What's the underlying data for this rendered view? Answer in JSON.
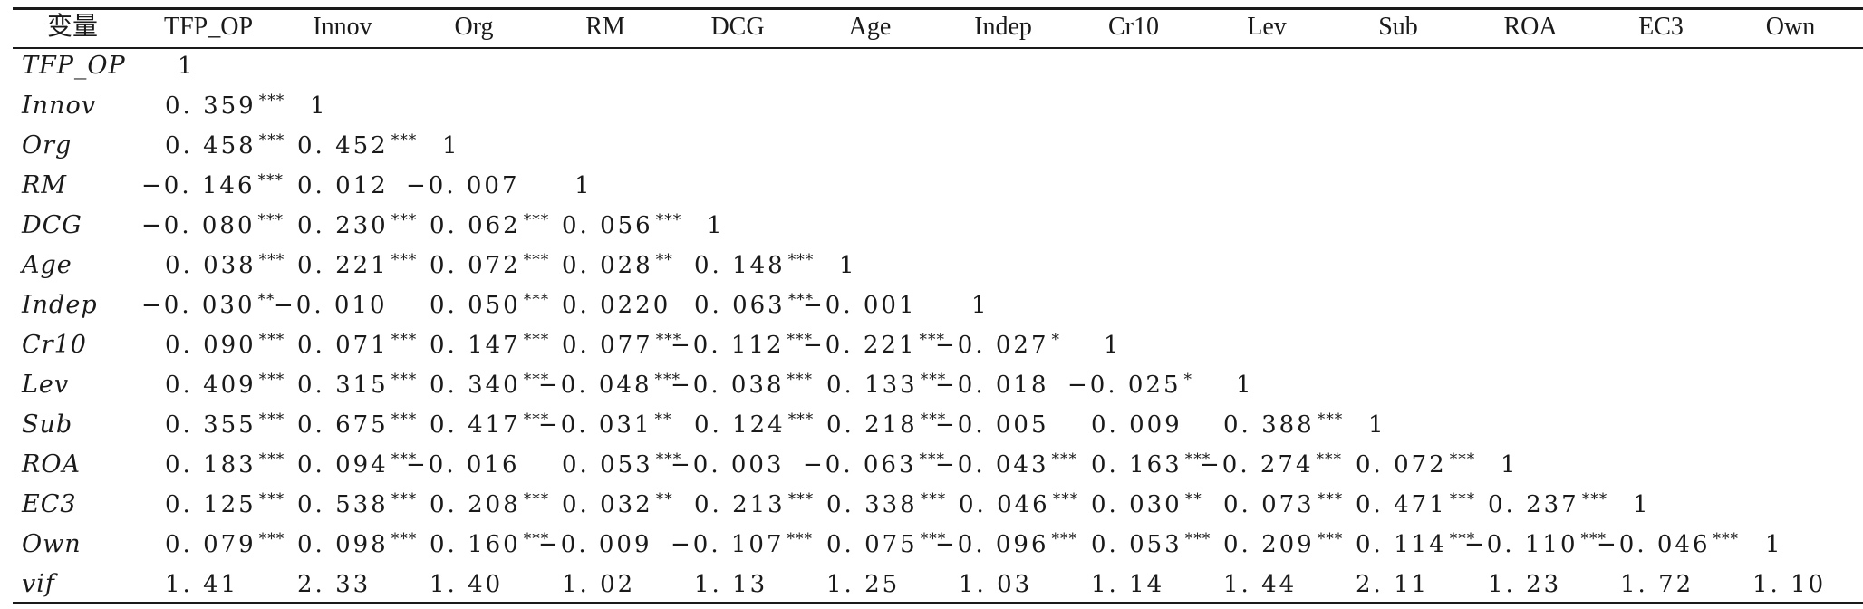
{
  "columns": [
    "变量",
    "TFP_OP",
    "Innov",
    "Org",
    "RM",
    "DCG",
    "Age",
    "Indep",
    "Cr10",
    "Lev",
    "Sub",
    "ROA",
    "EC3",
    "Own"
  ],
  "rows": [
    {
      "label": "TFP_OP",
      "cells": [
        "1"
      ]
    },
    {
      "label": "Innov",
      "cells": [
        "0.359***",
        "1"
      ]
    },
    {
      "label": "Org",
      "cells": [
        "0.458***",
        "0.452***",
        "1"
      ]
    },
    {
      "label": "RM",
      "cells": [
        "−0.146***",
        "0.012",
        "−0.007",
        "1"
      ]
    },
    {
      "label": "DCG",
      "cells": [
        "−0.080***",
        "0.230***",
        "0.062***",
        "0.056***",
        "1"
      ]
    },
    {
      "label": "Age",
      "cells": [
        "0.038***",
        "0.221***",
        "0.072***",
        "0.028**",
        "0.148***",
        "1"
      ]
    },
    {
      "label": "Indep",
      "cells": [
        "−0.030**",
        "−0.010",
        "0.050***",
        "0.0220",
        "0.063***",
        "−0.001",
        "1"
      ]
    },
    {
      "label": "Cr10",
      "cells": [
        "0.090***",
        "0.071***",
        "0.147***",
        "0.077***",
        "−0.112***",
        "−0.221***",
        "−0.027*",
        "1"
      ]
    },
    {
      "label": "Lev",
      "cells": [
        "0.409***",
        "0.315***",
        "0.340***",
        "−0.048***",
        "−0.038***",
        "0.133***",
        "−0.018",
        "−0.025*",
        "1"
      ]
    },
    {
      "label": "Sub",
      "cells": [
        "0.355***",
        "0.675***",
        "0.417***",
        "−0.031**",
        "0.124***",
        "0.218***",
        "−0.005",
        "0.009",
        "0.388***",
        "1"
      ]
    },
    {
      "label": "ROA",
      "cells": [
        "0.183***",
        "0.094***",
        "−0.016",
        "0.053***",
        "−0.003",
        "−0.063***",
        "−0.043***",
        "0.163***",
        "−0.274***",
        "0.072***",
        "1"
      ]
    },
    {
      "label": "EC3",
      "cells": [
        "0.125***",
        "0.538***",
        "0.208***",
        "0.032**",
        "0.213***",
        "0.338***",
        "0.046***",
        "0.030**",
        "0.073***",
        "0.471***",
        "0.237***",
        "1"
      ]
    },
    {
      "label": "Own",
      "cells": [
        "0.079***",
        "0.098***",
        "0.160***",
        "−0.009",
        "−0.107***",
        "0.075***",
        "−0.096***",
        "0.053***",
        "0.209***",
        "0.114***",
        "−0.110***",
        "−0.046***",
        "1"
      ]
    },
    {
      "label": "vif",
      "cells": [
        "1.41",
        "2.33",
        "1.40",
        "1.02",
        "1.13",
        "1.25",
        "1.03",
        "1.14",
        "1.44",
        "2.11",
        "1.23",
        "1.72",
        "1.10"
      ]
    }
  ]
}
